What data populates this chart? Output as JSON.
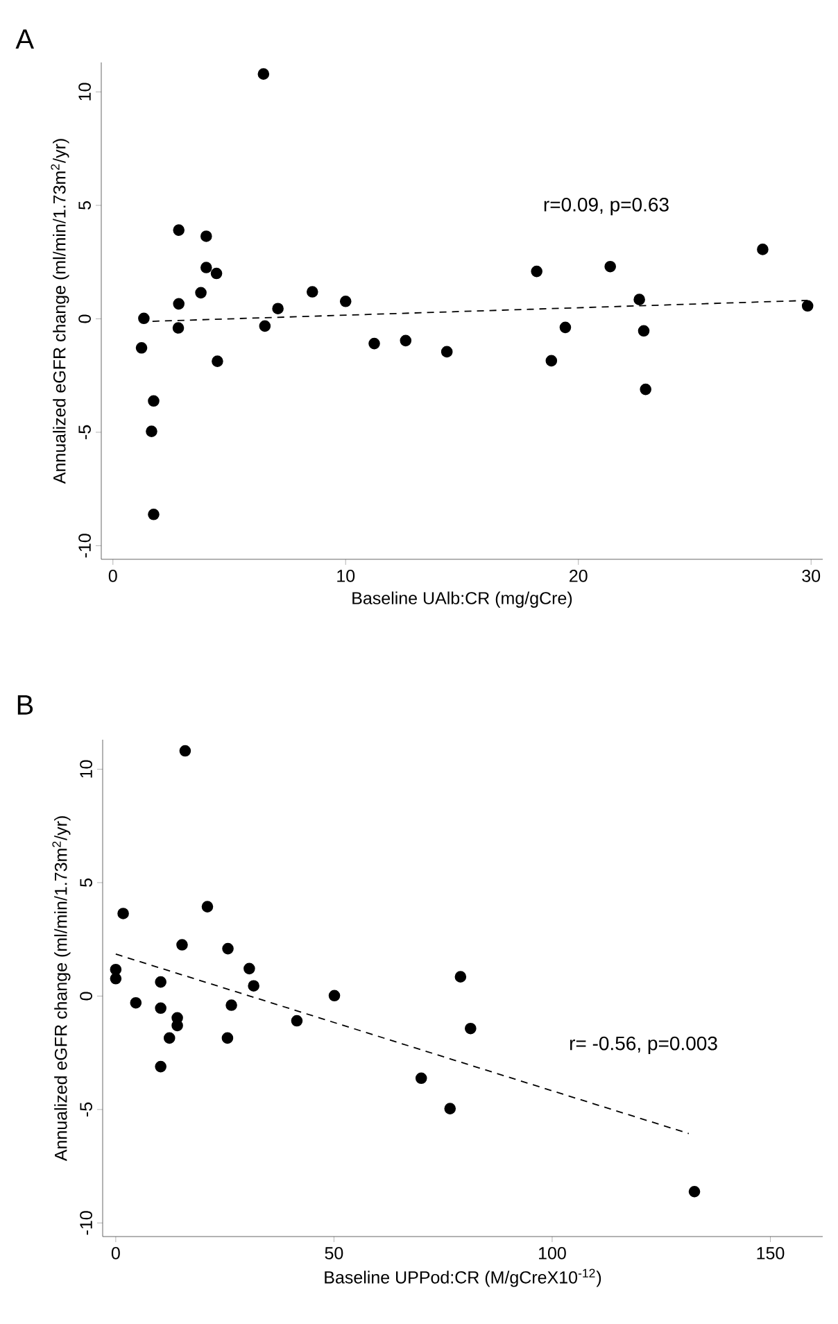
{
  "chart_data": [
    {
      "type": "scatter",
      "title": "A",
      "xlabel": "Baseline UAlb:CR (mg/gCre)",
      "ylabel": "Annualized eGFR change (ml/min/1.73m$^{2}$/yr)",
      "xlim": [
        -0.5,
        30.5
      ],
      "ylim": [
        -10.6,
        11.3
      ],
      "xticks": [
        0,
        10,
        20,
        30
      ],
      "yticks": [
        -10,
        -5,
        0,
        5,
        10
      ],
      "annotations": [
        "r=0.09, p=0.63"
      ],
      "series": [
        {
          "marker": "circle",
          "color": "#000000",
          "x": [
            6.47,
            2.83,
            4.01,
            4.01,
            4.45,
            3.78,
            2.83,
            1.33,
            2.81,
            1.23,
            4.49,
            1.75,
            1.66,
            1.75,
            6.53,
            7.09,
            8.57,
            10.0,
            11.23,
            12.58,
            14.35,
            18.21,
            18.84,
            19.44,
            21.37,
            22.62,
            22.81,
            22.89,
            27.92,
            29.85
          ],
          "values": [
            10.79,
            3.91,
            3.64,
            2.26,
            2.0,
            1.15,
            0.66,
            0.02,
            -0.4,
            -1.28,
            -1.87,
            -3.62,
            -4.96,
            -8.62,
            -0.32,
            0.45,
            1.19,
            0.77,
            -1.09,
            -0.96,
            -1.45,
            2.09,
            -1.85,
            -0.38,
            2.3,
            0.85,
            -0.53,
            -3.11,
            3.06,
            0.57
          ]
        },
        {
          "type": "line",
          "line_style": "dashed",
          "marker": "none",
          "color": "#000000",
          "x": [
            1.7,
            29.85
          ],
          "values": [
            -0.11,
            0.81
          ]
        }
      ]
    },
    {
      "type": "scatter",
      "title": "B",
      "xlabel": "Baseline UPPod:CR (M/gCreX10$^{-12}$)",
      "ylabel": "Annualized eGFR change (ml/min/1.73m$^{2}$/yr)",
      "xlim": [
        -3,
        162
      ],
      "ylim": [
        -10.6,
        11.3
      ],
      "xticks": [
        0,
        50,
        100,
        150
      ],
      "yticks": [
        -10,
        -5,
        0,
        5,
        10
      ],
      "annotations": [
        "r= -0.56, p=0.003"
      ],
      "series": [
        {
          "marker": "circle",
          "color": "#000000",
          "x": [
            15.9,
            1.7,
            21.0,
            15.2,
            25.7,
            0,
            0,
            10.3,
            30.6,
            31.6,
            4.6,
            10.3,
            14.1,
            14.1,
            12.3,
            10.3,
            26.5,
            25.6,
            41.5,
            50.1,
            79.0,
            81.3,
            70.0,
            76.6,
            132.6
          ],
          "values": [
            10.81,
            3.64,
            3.94,
            2.26,
            2.09,
            1.17,
            0.77,
            0.62,
            1.21,
            0.45,
            -0.3,
            -0.53,
            -0.96,
            -1.3,
            -1.85,
            -3.11,
            -0.4,
            -1.85,
            -1.09,
            0.02,
            0.85,
            -1.43,
            -3.62,
            -4.96,
            -8.62
          ]
        },
        {
          "type": "line",
          "line_style": "dashed",
          "marker": "none",
          "color": "#000000",
          "x": [
            0,
            131.3
          ],
          "values": [
            1.85,
            -6.06
          ]
        }
      ]
    }
  ]
}
